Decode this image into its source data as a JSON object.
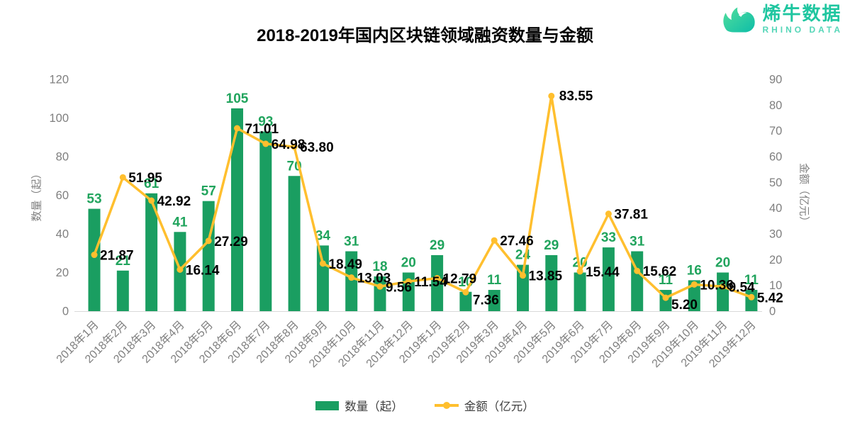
{
  "title": "2018-2019年国内区块链领域融资数量与金额",
  "logo": {
    "name_cn": "烯牛数据",
    "name_en": "RHINO DATA",
    "icon": "rhino-head",
    "color": "#1fc6a0"
  },
  "chart_data": {
    "type": "bar",
    "subtype": "combo-bar-line-dual-axis",
    "title": "2018-2019年国内区块链领域融资数量与金额",
    "categories": [
      "2018年1月",
      "2018年2月",
      "2018年3月",
      "2018年4月",
      "2018年5月",
      "2018年6月",
      "2018年7月",
      "2018年8月",
      "2018年9月",
      "2018年10月",
      "2018年11月",
      "2018年12月",
      "2019年1月",
      "2019年2月",
      "2019年3月",
      "2019年4月",
      "2019年5月",
      "2019年6月",
      "2019年7月",
      "2019年8月",
      "2019年9月",
      "2019年10月",
      "2019年11月",
      "2019年12月"
    ],
    "series": [
      {
        "name": "数量（起）",
        "type": "bar",
        "axis": "left",
        "color": "#1a9e61",
        "values": [
          53,
          21,
          61,
          41,
          57,
          105,
          93,
          70,
          34,
          31,
          18,
          20,
          29,
          10,
          11,
          24,
          29,
          20,
          33,
          31,
          11,
          16,
          20,
          11
        ]
      },
      {
        "name": "金额（亿元）",
        "type": "line",
        "axis": "right",
        "color": "#ffbf2e",
        "values": [
          21.87,
          51.95,
          42.92,
          16.14,
          27.29,
          71.01,
          64.98,
          63.8,
          18.49,
          13.03,
          9.56,
          11.54,
          12.79,
          7.36,
          27.46,
          13.85,
          83.55,
          15.44,
          37.81,
          15.62,
          5.2,
          10.36,
          9.54,
          5.42
        ],
        "labels": [
          "21.87",
          "51.95",
          "42.92",
          "16.14",
          "27.29",
          "71.01",
          "64.98",
          "63.80",
          "18.49",
          "13.03",
          "9.56",
          "11.54",
          "12.79",
          "7.36",
          "27.46",
          "13.85",
          "83.55",
          "15.44",
          "37.81",
          "15.62",
          "5.20",
          "10.36",
          "9.54",
          "5.42"
        ]
      }
    ],
    "left_axis": {
      "title": "数量（起）",
      "min": 0,
      "max": 120,
      "ticks": [
        0,
        20,
        40,
        60,
        80,
        100,
        120
      ]
    },
    "right_axis": {
      "title": "金额（亿元）",
      "min": 0,
      "max": 90,
      "ticks": [
        0,
        10,
        20,
        30,
        40,
        50,
        60,
        70,
        80,
        90
      ]
    },
    "legend": [
      "数量（起）",
      "金额（亿元）"
    ],
    "legend_position": "bottom",
    "grid": false,
    "colors": {
      "bar": "#1a9e61",
      "bar_label": "#21a45d",
      "line": "#ffbf2e",
      "line_label": "#000000",
      "axis_text": "#7f7f7f",
      "axis_line": "#d9d9d9"
    }
  }
}
